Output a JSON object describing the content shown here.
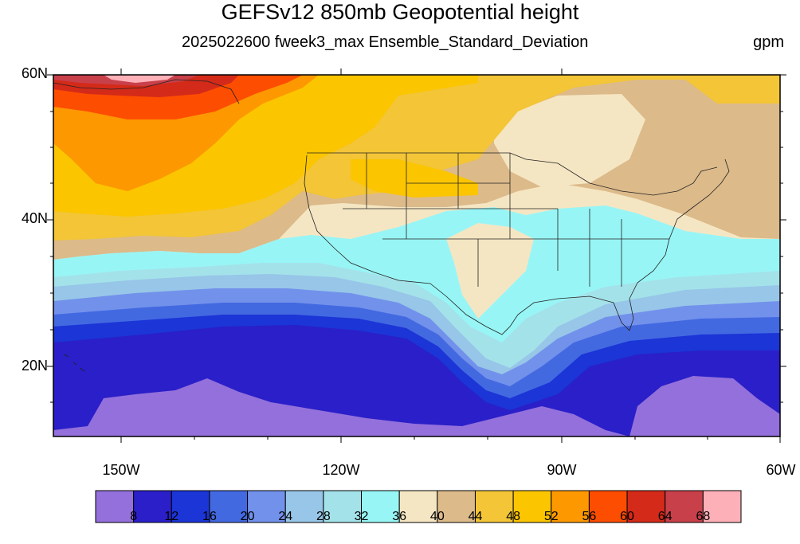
{
  "title": "GEFSv12 850mb Geopotential height",
  "subtitle": "2025022600 fweek3_max Ensemble_Standard_Deviation",
  "units": "gpm",
  "lat_labels": [
    "60N",
    "40N",
    "20N"
  ],
  "lon_labels": [
    "150W",
    "120W",
    "90W",
    "60W"
  ],
  "colorbar": {
    "colors": [
      "#9370db",
      "#2a1fc8",
      "#1b35d6",
      "#4369e1",
      "#7291eb",
      "#97c6e8",
      "#a4e2ea",
      "#98f5f5",
      "#f5e6c3",
      "#dcba8a",
      "#f3c537",
      "#fbc500",
      "#fd9800",
      "#fd4d00",
      "#d42a19",
      "#c8404a",
      "#fdb0b8"
    ],
    "labels": [
      "8",
      "12",
      "16",
      "20",
      "24",
      "28",
      "32",
      "36",
      "40",
      "44",
      "48",
      "52",
      "56",
      "60",
      "64",
      "68"
    ]
  },
  "map_colors": {
    "lavender": "#9370db",
    "deep_blue": "#2a1fc8",
    "blue": "#1b35d6",
    "med_blue": "#4369e1",
    "cornflower": "#7291eb",
    "sky": "#97c6e8",
    "pale_cyan": "#a4e2ea",
    "cyan": "#98f5f5",
    "cream": "#f5e6c3",
    "tan": "#dcba8a",
    "gold": "#f3c537",
    "yellow": "#fbc500",
    "orange": "#fd9800",
    "red_orange": "#fd4d00",
    "red": "#d42a19",
    "rose": "#c8404a",
    "pink": "#fdb0b8"
  }
}
